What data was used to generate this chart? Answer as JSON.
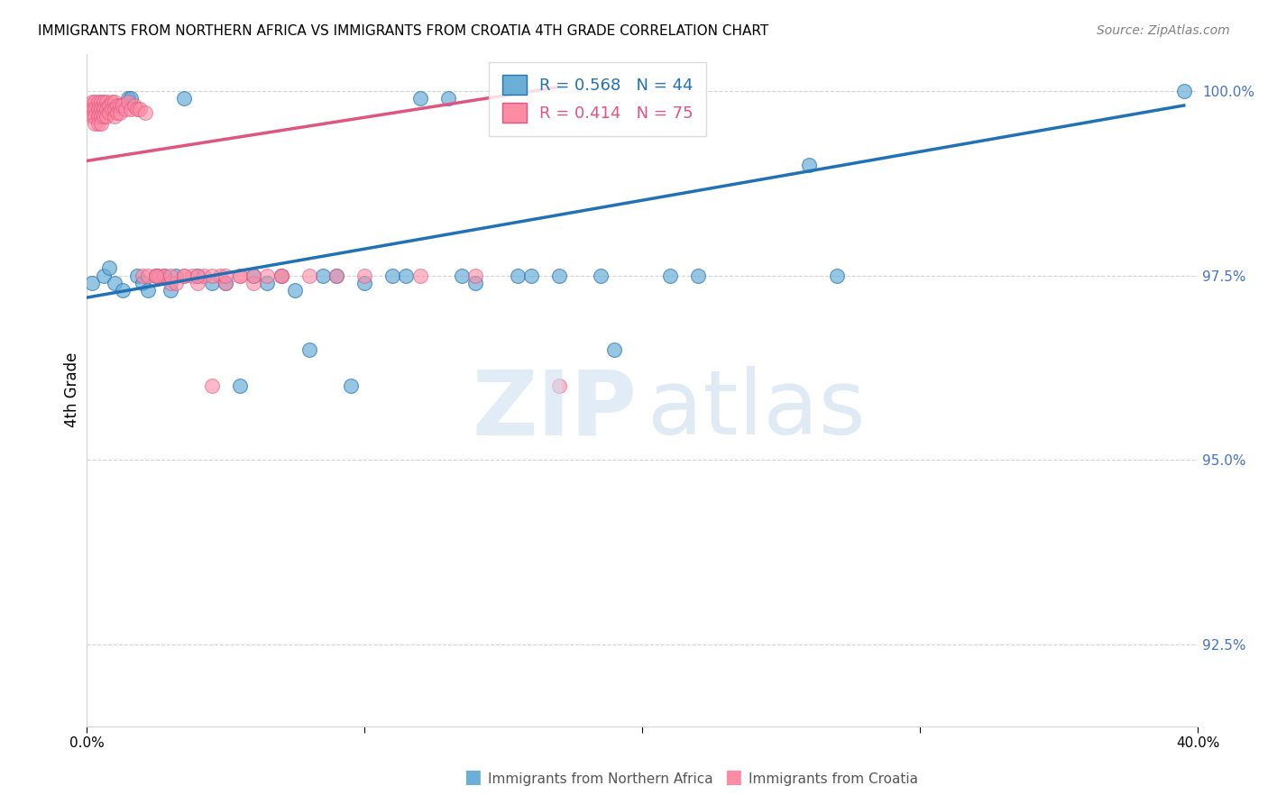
{
  "title": "IMMIGRANTS FROM NORTHERN AFRICA VS IMMIGRANTS FROM CROATIA 4TH GRADE CORRELATION CHART",
  "source": "Source: ZipAtlas.com",
  "ylabel": "4th Grade",
  "ytick_values": [
    1.0,
    0.975,
    0.95,
    0.925
  ],
  "xlim": [
    0.0,
    0.4
  ],
  "ylim": [
    0.914,
    1.005
  ],
  "legend_blue_r": "R = 0.568",
  "legend_blue_n": "N = 44",
  "legend_pink_r": "R = 0.414",
  "legend_pink_n": "N = 75",
  "blue_color": "#6baed6",
  "pink_color": "#fc8ba4",
  "trendline_blue": "#2171b5",
  "trendline_pink": "#e05580",
  "blue_scatter_x": [
    0.002,
    0.006,
    0.008,
    0.01,
    0.013,
    0.015,
    0.016,
    0.018,
    0.02,
    0.022,
    0.025,
    0.028,
    0.03,
    0.032,
    0.035,
    0.04,
    0.045,
    0.05,
    0.055,
    0.06,
    0.065,
    0.07,
    0.075,
    0.08,
    0.085,
    0.09,
    0.095,
    0.1,
    0.11,
    0.115,
    0.12,
    0.13,
    0.135,
    0.14,
    0.155,
    0.16,
    0.17,
    0.185,
    0.19,
    0.21,
    0.22,
    0.26,
    0.27,
    0.395
  ],
  "blue_scatter_y": [
    0.974,
    0.975,
    0.976,
    0.974,
    0.973,
    0.999,
    0.999,
    0.975,
    0.974,
    0.973,
    0.975,
    0.975,
    0.973,
    0.975,
    0.999,
    0.975,
    0.974,
    0.974,
    0.96,
    0.975,
    0.974,
    0.975,
    0.973,
    0.965,
    0.975,
    0.975,
    0.96,
    0.974,
    0.975,
    0.975,
    0.999,
    0.999,
    0.975,
    0.974,
    0.975,
    0.975,
    0.975,
    0.975,
    0.965,
    0.975,
    0.975,
    0.99,
    0.975,
    1.0
  ],
  "pink_scatter_x": [
    0.001,
    0.001,
    0.002,
    0.002,
    0.002,
    0.003,
    0.003,
    0.003,
    0.003,
    0.004,
    0.004,
    0.004,
    0.004,
    0.005,
    0.005,
    0.005,
    0.005,
    0.006,
    0.006,
    0.006,
    0.007,
    0.007,
    0.007,
    0.008,
    0.008,
    0.009,
    0.009,
    0.01,
    0.01,
    0.01,
    0.011,
    0.011,
    0.012,
    0.012,
    0.013,
    0.014,
    0.015,
    0.016,
    0.017,
    0.018,
    0.019,
    0.02,
    0.021,
    0.022,
    0.025,
    0.026,
    0.028,
    0.03,
    0.032,
    0.035,
    0.038,
    0.04,
    0.042,
    0.045,
    0.048,
    0.05,
    0.055,
    0.06,
    0.065,
    0.07,
    0.025,
    0.03,
    0.035,
    0.04,
    0.045,
    0.05,
    0.055,
    0.06,
    0.07,
    0.08,
    0.09,
    0.1,
    0.12,
    0.14,
    0.17
  ],
  "pink_scatter_y": [
    0.998,
    0.997,
    0.9985,
    0.9975,
    0.9965,
    0.9985,
    0.9975,
    0.9965,
    0.9955,
    0.9985,
    0.9975,
    0.9965,
    0.9955,
    0.9985,
    0.9975,
    0.9965,
    0.9955,
    0.9985,
    0.9975,
    0.9965,
    0.9985,
    0.9975,
    0.9965,
    0.998,
    0.997,
    0.9985,
    0.9975,
    0.9985,
    0.9975,
    0.9965,
    0.998,
    0.997,
    0.998,
    0.997,
    0.998,
    0.9975,
    0.9985,
    0.9975,
    0.998,
    0.9975,
    0.9975,
    0.975,
    0.997,
    0.975,
    0.975,
    0.975,
    0.975,
    0.974,
    0.974,
    0.975,
    0.975,
    0.974,
    0.975,
    0.96,
    0.975,
    0.974,
    0.975,
    0.974,
    0.975,
    0.975,
    0.975,
    0.975,
    0.975,
    0.975,
    0.975,
    0.975,
    0.975,
    0.975,
    0.975,
    0.975,
    0.975,
    0.975,
    0.975,
    0.975,
    0.96
  ],
  "blue_trend_x": [
    0.0,
    0.395
  ],
  "blue_trend_y": [
    0.972,
    0.998
  ],
  "pink_trend_x": [
    0.0,
    0.17
  ],
  "pink_trend_y": [
    0.9905,
    1.0005
  ],
  "watermark_zip": "ZIP",
  "watermark_atlas": "atlas"
}
